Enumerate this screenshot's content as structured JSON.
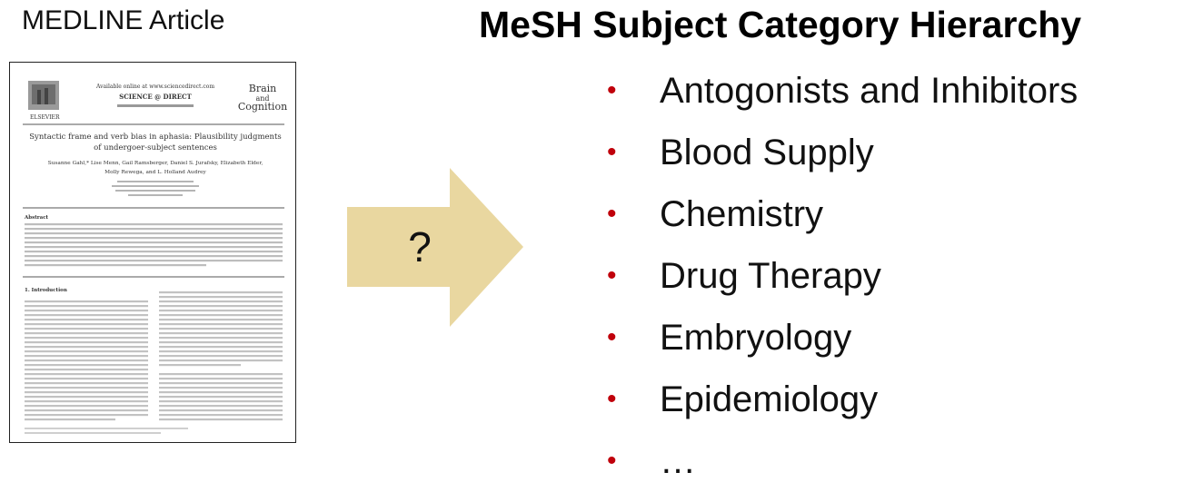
{
  "left": {
    "title": "MEDLINE Article",
    "article": {
      "publisher_line": "Available online at www.sciencedirect.com",
      "science_direct": "SCIENCE @ DIRECT",
      "journal_name_1": "Brain",
      "journal_name_2": "and",
      "journal_name_3": "Cognition",
      "publisher": "ELSEVIER",
      "headline_1": "Syntactic frame and verb bias in aphasia: Plausibility judgments",
      "headline_2": "of undergoer-subject sentences",
      "authors_1": "Susanne Gahl,* Lise Menn, Gail Ramsberger, Daniel S. Jurafsky, Elizabeth Elder,",
      "authors_2": "Molly Rewega, and L. Holland Audrey",
      "abstract_heading": "Abstract",
      "intro_heading": "1. Introduction"
    }
  },
  "center": {
    "label": "?",
    "arrow_color": "#e9d7a0"
  },
  "right": {
    "title": "MeSH Subject Category Hierarchy",
    "bullet_char": "•",
    "bullet_color": "#c0000b",
    "categories": [
      "Antogonists and Inhibitors",
      "Blood Supply",
      "Chemistry",
      "Drug Therapy",
      "Embryology",
      "Epidemiology",
      "…"
    ]
  }
}
